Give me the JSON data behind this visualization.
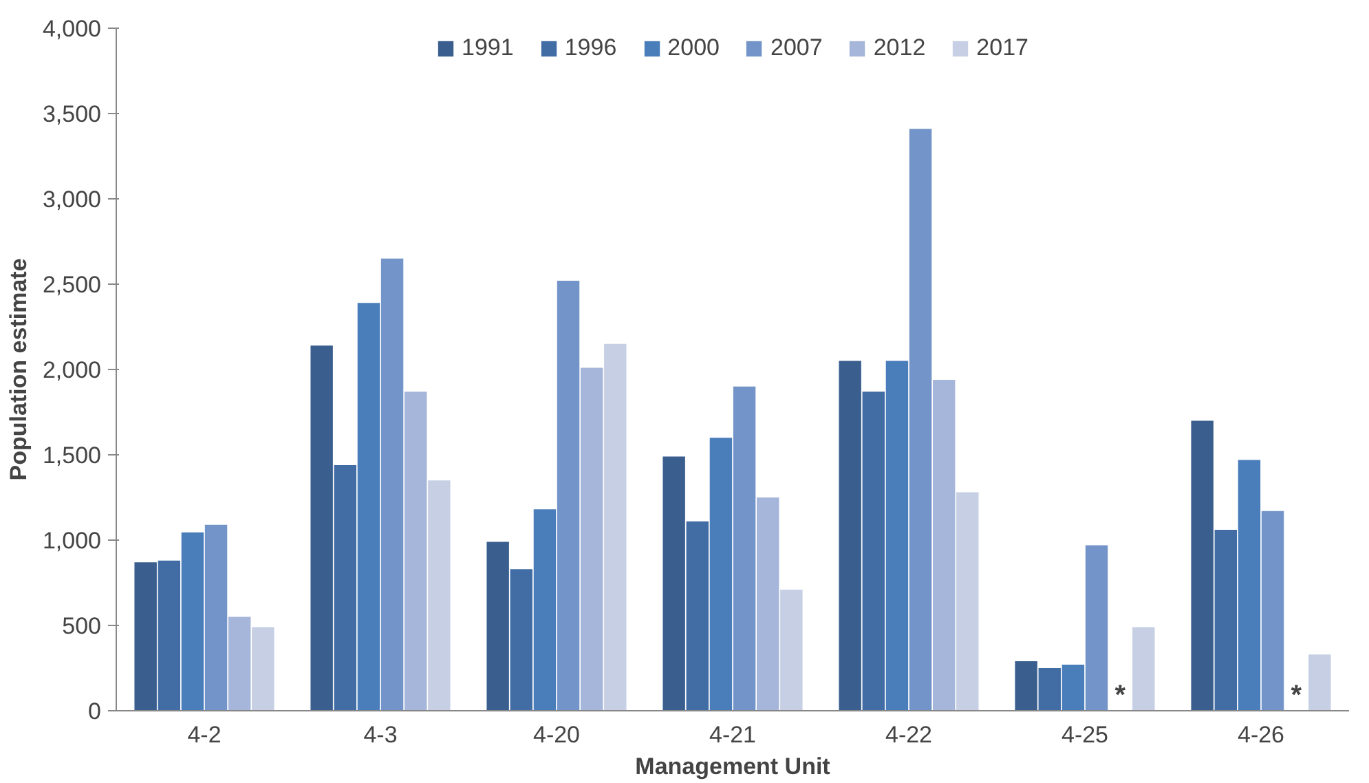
{
  "chart_data": {
    "type": "bar",
    "xlabel": "Management Unit",
    "ylabel": "Population estimate",
    "categories": [
      "4-2",
      "4-3",
      "4-20",
      "4-21",
      "4-22",
      "4-25",
      "4-26"
    ],
    "series": [
      {
        "name": "1991",
        "color": "#3a5f8f",
        "values": [
          870,
          2140,
          990,
          1490,
          2050,
          290,
          1700
        ]
      },
      {
        "name": "1996",
        "color": "#416ca4",
        "values": [
          880,
          1440,
          830,
          1110,
          1870,
          250,
          1060
        ]
      },
      {
        "name": "2000",
        "color": "#4a7ebb",
        "values": [
          1045,
          2390,
          1180,
          1600,
          2050,
          270,
          1470
        ]
      },
      {
        "name": "2007",
        "color": "#7394c8",
        "values": [
          1090,
          2650,
          2520,
          1900,
          3410,
          970,
          1170
        ]
      },
      {
        "name": "2012",
        "color": "#a6b6da",
        "values": [
          550,
          1870,
          2010,
          1250,
          1940,
          null,
          null
        ]
      },
      {
        "name": "2017",
        "color": "#c6cfe4",
        "values": [
          490,
          1350,
          2150,
          710,
          1280,
          490,
          330
        ]
      }
    ],
    "ylim": [
      0,
      4000
    ],
    "yticks": [
      {
        "value": 0,
        "label": "0"
      },
      {
        "value": 500,
        "label": "500"
      },
      {
        "value": 1000,
        "label": "1,000"
      },
      {
        "value": 1500,
        "label": "1,500"
      },
      {
        "value": 2000,
        "label": "2,000"
      },
      {
        "value": 2500,
        "label": "2,500"
      },
      {
        "value": 3000,
        "label": "3,000"
      },
      {
        "value": 3500,
        "label": "3,500"
      },
      {
        "value": 4000,
        "label": "4,000"
      }
    ],
    "annotations": [
      {
        "text": "*",
        "x": "4-25",
        "y": 0
      },
      {
        "text": "*",
        "x": "4-26",
        "y": 0
      }
    ],
    "grid": false,
    "legend": "top"
  }
}
